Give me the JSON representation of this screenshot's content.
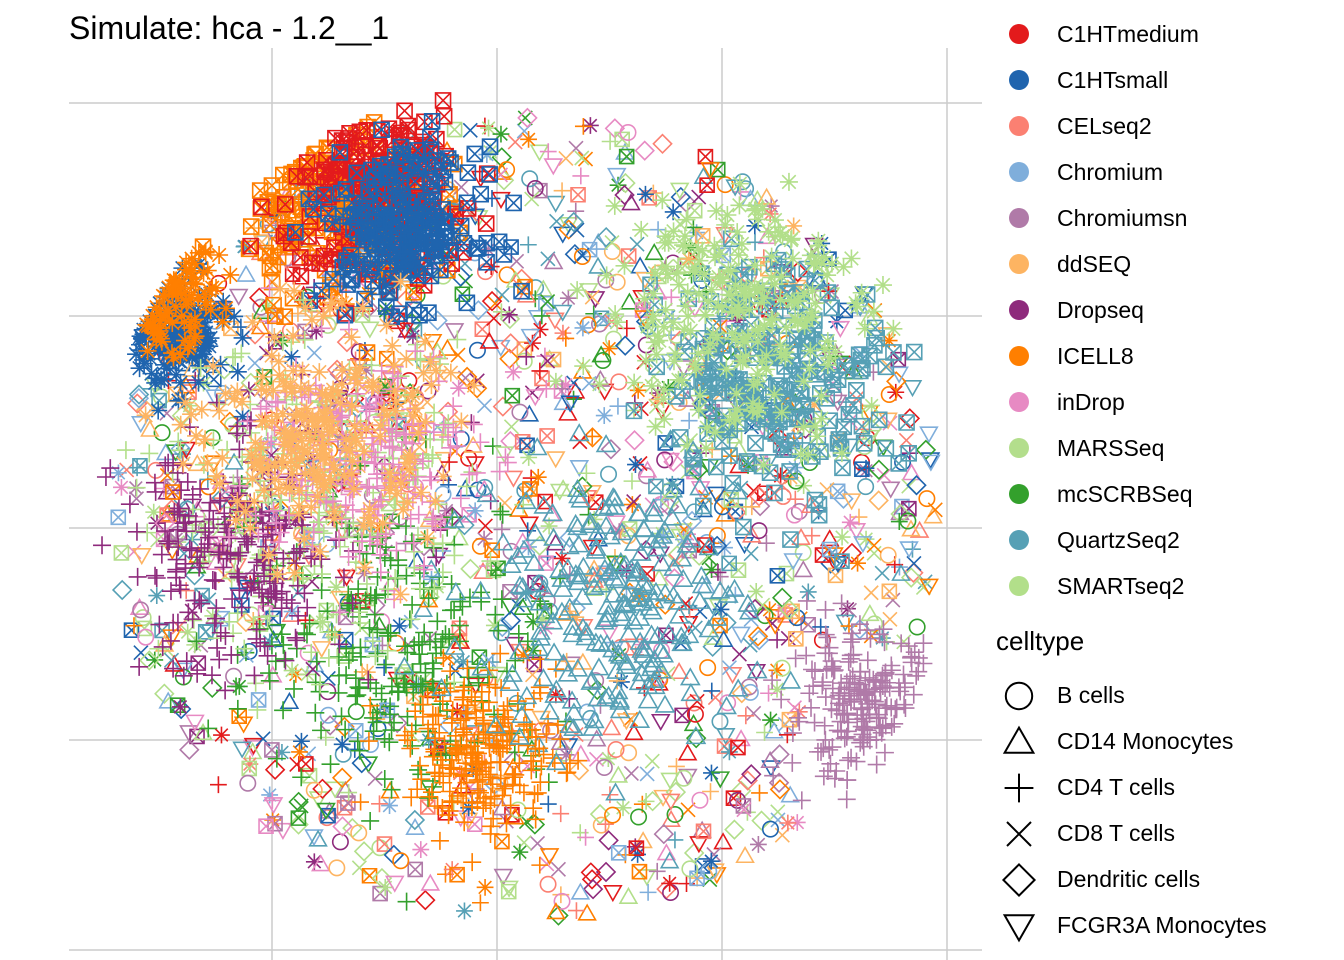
{
  "chart_data": {
    "type": "scatter",
    "title": "Simulate: hca - 1.2__1",
    "xlabel": "",
    "ylabel": "",
    "grid": true,
    "x_ticks_shown": false,
    "y_ticks_shown": false,
    "legend_position": "right",
    "color_legend": {
      "title": "",
      "entries": [
        {
          "label": "C1HTmedium",
          "color": "#E31A1C"
        },
        {
          "label": "C1HTsmall",
          "color": "#1F64AE"
        },
        {
          "label": "CELseq2",
          "color": "#FB8072"
        },
        {
          "label": "Chromium",
          "color": "#7FAEDB"
        },
        {
          "label": "Chromiumsn",
          "color": "#B07AA8"
        },
        {
          "label": "ddSEQ",
          "color": "#FDB462"
        },
        {
          "label": "Dropseq",
          "color": "#8E2A7C"
        },
        {
          "label": "ICELL8",
          "color": "#FF7F00"
        },
        {
          "label": "inDrop",
          "color": "#E78AC3"
        },
        {
          "label": "MARSSeq",
          "color": "#B3DE8C"
        },
        {
          "label": "mcSCRBSeq",
          "color": "#33A02C"
        },
        {
          "label": "QuartzSeq2",
          "color": "#56A0B5"
        },
        {
          "label": "SMARTseq2",
          "color": "#B2DF8A"
        }
      ]
    },
    "shape_legend": {
      "title": "celltype",
      "entries": [
        {
          "label": "B cells",
          "shape": "circle"
        },
        {
          "label": "CD14 Monocytes",
          "shape": "triangle"
        },
        {
          "label": "CD4 T cells",
          "shape": "plus"
        },
        {
          "label": "CD8 T cells",
          "shape": "cross"
        },
        {
          "label": "Dendritic cells",
          "shape": "diamond"
        },
        {
          "label": "FCGR3A Monocytes",
          "shape": "triangle-down"
        }
      ]
    },
    "point_groups": [
      {
        "series": "ICELL8",
        "shape": "square-cross",
        "x": -0.45,
        "y": 0.75,
        "spread": 0.25
      },
      {
        "series": "C1HTmedium",
        "shape": "square-cross",
        "x": -0.35,
        "y": 0.78,
        "spread": 0.25
      },
      {
        "series": "C1HTsmall",
        "shape": "square-cross",
        "x": -0.3,
        "y": 0.7,
        "spread": 0.2
      },
      {
        "series": "C1HTsmall",
        "shape": "asterisk",
        "x": -0.85,
        "y": 0.45,
        "spread": 0.15
      },
      {
        "series": "ICELL8",
        "shape": "asterisk",
        "x": -0.88,
        "y": 0.55,
        "spread": 0.15
      },
      {
        "series": "QuartzSeq2",
        "shape": "square-cross",
        "x": 0.6,
        "y": 0.35,
        "spread": 0.3
      },
      {
        "series": "SMARTseq2",
        "shape": "asterisk",
        "x": 0.5,
        "y": 0.5,
        "spread": 0.35
      },
      {
        "series": "Chromiumsn",
        "shape": "plus",
        "x": 0.8,
        "y": -0.45,
        "spread": 0.2
      },
      {
        "series": "mcSCRBSeq",
        "shape": "plus",
        "x": -0.3,
        "y": -0.3,
        "spread": 0.4
      },
      {
        "series": "SMARTseq2",
        "shape": "plus",
        "x": -0.5,
        "y": 0.05,
        "spread": 0.4
      },
      {
        "series": "Dropseq",
        "shape": "plus",
        "x": -0.7,
        "y": -0.1,
        "spread": 0.3
      },
      {
        "series": "ICELL8",
        "shape": "plus",
        "x": -0.1,
        "y": -0.55,
        "spread": 0.2
      },
      {
        "series": "QuartzSeq2",
        "shape": "triangle",
        "x": 0.2,
        "y": -0.2,
        "spread": 0.35
      },
      {
        "series": "inDrop",
        "shape": "plus",
        "x": -0.4,
        "y": 0.15,
        "spread": 0.3
      },
      {
        "series": "ddSEQ",
        "shape": "asterisk",
        "x": -0.5,
        "y": 0.2,
        "spread": 0.3
      }
    ]
  }
}
